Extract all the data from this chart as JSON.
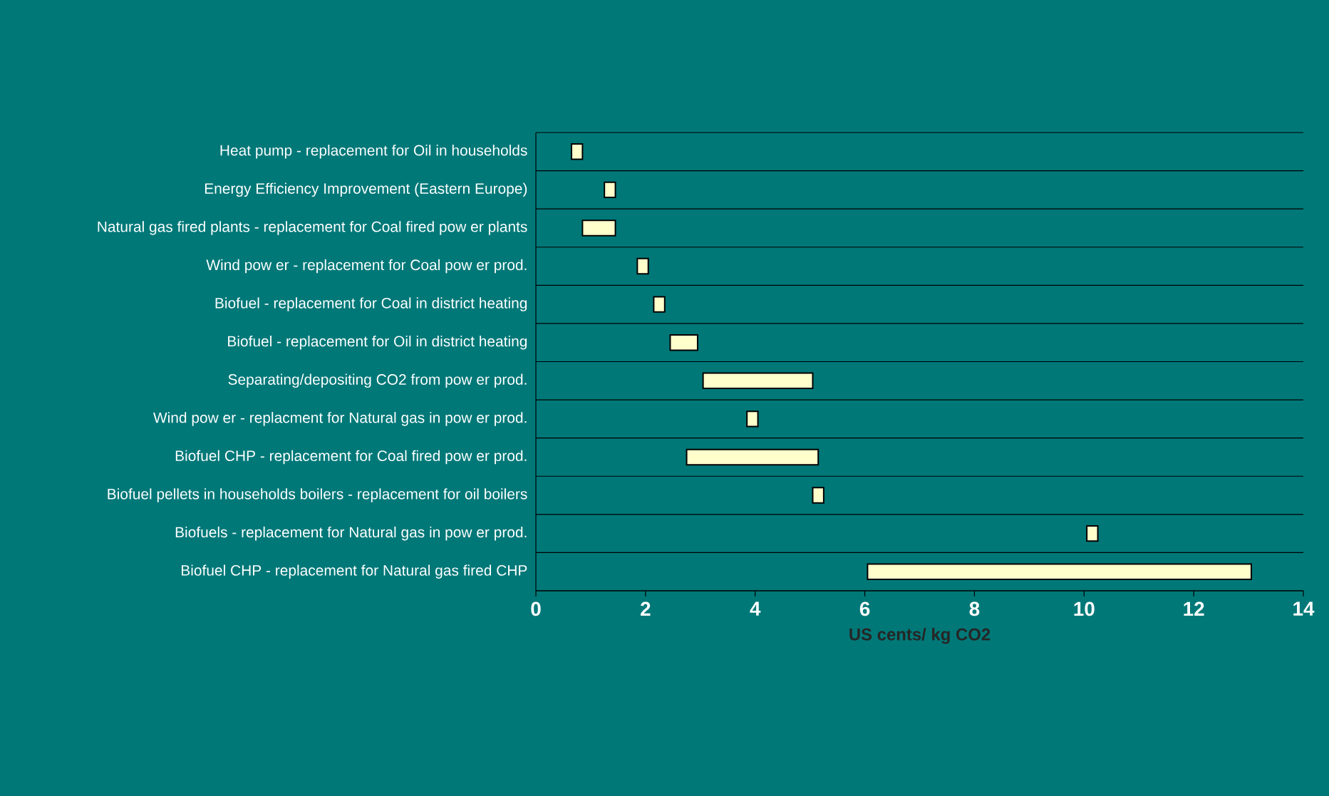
{
  "chart_data": {
    "type": "bar",
    "orientation": "horizontal",
    "xlabel": "US cents/ kg CO2",
    "categories": [
      "Heat pump - replacement for Oil in households",
      "Energy Efficiency Improvement  (Eastern Europe)",
      "Natural gas fired plants - replacement for Coal fired pow er plants",
      "Wind pow er - replacement for Coal pow er prod.",
      "Biofuel - replacement for Coal in district heating",
      "Biofuel - replacement for Oil in district heating",
      "Separating/depositing CO2 from pow er prod.",
      "Wind pow er - replacment for Natural gas in pow er prod.",
      "Biofuel CHP - replacement for Coal fired pow er prod.",
      "Biofuel pellets in households boilers - replacement for oil boilers",
      "Biofuels - replacement for Natural gas in pow er prod.",
      "Biofuel CHP - replacement for Natural gas fired CHP"
    ],
    "base": [
      0.65,
      1.25,
      0.85,
      1.85,
      2.15,
      2.45,
      3.05,
      3.85,
      2.75,
      5.05,
      10.05,
      6.05
    ],
    "values": [
      0.2,
      0.2,
      0.6,
      0.2,
      0.2,
      0.5,
      2.0,
      0.2,
      2.4,
      0.2,
      0.2,
      7.0
    ],
    "color": "#ffffcc",
    "xlim": [
      0,
      14
    ],
    "xticks": [
      0,
      2,
      4,
      6,
      8,
      10,
      12,
      14
    ],
    "grid": "y"
  }
}
